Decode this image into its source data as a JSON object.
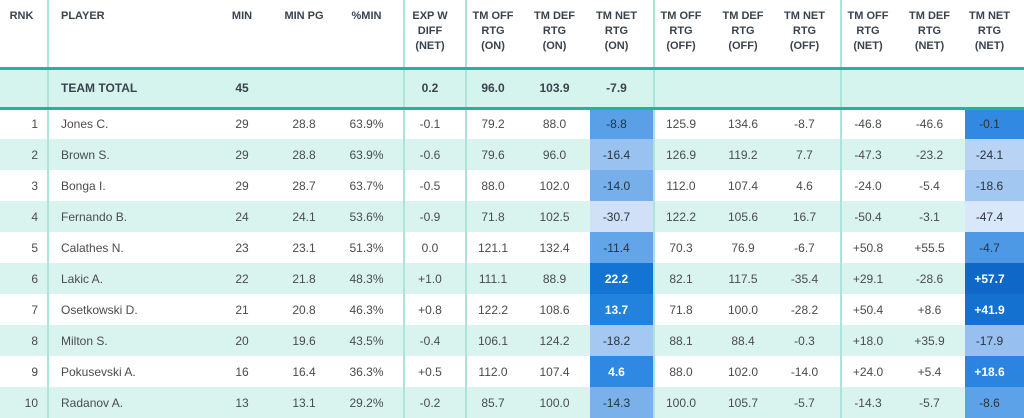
{
  "colors": {
    "accent_teal_border": "#25B2A0",
    "row_stripe_mint": "#D9F4EF",
    "team_total_bg": "#D6F4EE",
    "column_separator": "#ACE3DB",
    "header_text": "#3A434D",
    "body_text": "#4B4B4B",
    "heat_text_dark": "#2B333C",
    "heat_text_light": "#FFFFFF",
    "heat_blue_max": "#0F68C8",
    "heat_blue_min": "#D9E7FA"
  },
  "table": {
    "columns": [
      {
        "name": "rnk",
        "lines": [
          "RNK"
        ]
      },
      {
        "name": "player",
        "lines": [
          "PLAYER"
        ]
      },
      {
        "name": "min",
        "lines": [
          "MIN"
        ]
      },
      {
        "name": "min-pg",
        "lines": [
          "MIN PG"
        ]
      },
      {
        "name": "pct-min",
        "lines": [
          "%MIN"
        ]
      },
      {
        "name": "exp-w-diff-net",
        "lines": [
          "EXP W",
          "DIFF",
          "(NET)"
        ]
      },
      {
        "name": "tm-off-rtg-on",
        "lines": [
          "TM OFF",
          "RTG",
          "(ON)"
        ]
      },
      {
        "name": "tm-def-rtg-on",
        "lines": [
          "TM DEF",
          "RTG",
          "(ON)"
        ]
      },
      {
        "name": "tm-net-rtg-on",
        "lines": [
          "TM NET",
          "RTG",
          "(ON)"
        ]
      },
      {
        "name": "tm-off-rtg-off",
        "lines": [
          "TM OFF",
          "RTG",
          "(OFF)"
        ]
      },
      {
        "name": "tm-def-rtg-off",
        "lines": [
          "TM DEF",
          "RTG",
          "(OFF)"
        ]
      },
      {
        "name": "tm-net-rtg-off",
        "lines": [
          "TM NET",
          "RTG",
          "(OFF)"
        ]
      },
      {
        "name": "tm-off-rtg-net",
        "lines": [
          "TM OFF",
          "RTG",
          "(NET)"
        ]
      },
      {
        "name": "tm-def-rtg-net",
        "lines": [
          "TM DEF",
          "RTG",
          "(NET)"
        ]
      },
      {
        "name": "tm-net-rtg-net",
        "lines": [
          "TM NET",
          "RTG",
          "(NET)"
        ]
      }
    ],
    "team_total": {
      "cells": [
        "",
        "TEAM TOTAL",
        "45",
        "",
        "",
        "0.2",
        "96.0",
        "103.9",
        "-7.9",
        "",
        "",
        "",
        "",
        "",
        ""
      ]
    },
    "rows": [
      {
        "cells": [
          "1",
          "Jones C.",
          "29",
          "28.8",
          "63.9%",
          "-0.1",
          "79.2",
          "88.0",
          "-8.8",
          "125.9",
          "134.6",
          "-8.7",
          "-46.8",
          "-46.6",
          "-0.1"
        ],
        "heat": {
          "8": {
            "bg": "#59A0E7",
            "fg": "#2B333C"
          },
          "14": {
            "bg": "#3289E1",
            "fg": "#2B333C"
          }
        }
      },
      {
        "cells": [
          "2",
          "Brown S.",
          "29",
          "28.8",
          "63.9%",
          "-0.6",
          "79.6",
          "96.0",
          "-16.4",
          "126.9",
          "119.2",
          "7.7",
          "-47.3",
          "-23.2",
          "-24.1"
        ],
        "heat": {
          "8": {
            "bg": "#9AC2F0",
            "fg": "#2B333C"
          },
          "14": {
            "bg": "#B9D3F5",
            "fg": "#2B333C"
          }
        }
      },
      {
        "cells": [
          "3",
          "Bonga I.",
          "29",
          "28.7",
          "63.7%",
          "-0.5",
          "88.0",
          "102.0",
          "-14.0",
          "112.0",
          "107.4",
          "4.6",
          "-24.0",
          "-5.4",
          "-18.6"
        ],
        "heat": {
          "8": {
            "bg": "#77AFEA",
            "fg": "#2B333C"
          },
          "14": {
            "bg": "#A2C7F1",
            "fg": "#2B333C"
          }
        }
      },
      {
        "cells": [
          "4",
          "Fernando B.",
          "24",
          "24.1",
          "53.6%",
          "-0.9",
          "71.8",
          "102.5",
          "-30.7",
          "122.2",
          "105.6",
          "16.7",
          "-50.4",
          "-3.1",
          "-47.4"
        ],
        "heat": {
          "8": {
            "bg": "#CFE0F7",
            "fg": "#2B333C"
          },
          "14": {
            "bg": "#D9E7FA",
            "fg": "#2B333C"
          }
        }
      },
      {
        "cells": [
          "5",
          "Calathes N.",
          "23",
          "23.1",
          "51.3%",
          "0.0",
          "121.1",
          "132.4",
          "-11.4",
          "70.3",
          "76.9",
          "-6.7",
          "+50.8",
          "+55.5",
          "-4.7"
        ],
        "heat": {
          "8": {
            "bg": "#62A6E9",
            "fg": "#2B333C"
          },
          "14": {
            "bg": "#4D99E5",
            "fg": "#2B333C"
          }
        }
      },
      {
        "cells": [
          "6",
          "Lakic A.",
          "22",
          "21.8",
          "48.3%",
          "+1.0",
          "111.1",
          "88.9",
          "22.2",
          "82.1",
          "117.5",
          "-35.4",
          "+29.1",
          "-28.6",
          "+57.7"
        ],
        "heat": {
          "8": {
            "bg": "#1374D4",
            "fg": "#FFFFFF"
          },
          "14": {
            "bg": "#0F68C8",
            "fg": "#FFFFFF"
          }
        }
      },
      {
        "cells": [
          "7",
          "Osetkowski D.",
          "21",
          "20.8",
          "46.3%",
          "+0.8",
          "122.2",
          "108.6",
          "13.7",
          "71.8",
          "100.0",
          "-28.2",
          "+50.4",
          "+8.6",
          "+41.9"
        ],
        "heat": {
          "8": {
            "bg": "#2382DE",
            "fg": "#FFFFFF"
          },
          "14": {
            "bg": "#1471CF",
            "fg": "#FFFFFF"
          }
        }
      },
      {
        "cells": [
          "8",
          "Milton S.",
          "20",
          "19.6",
          "43.5%",
          "-0.4",
          "106.1",
          "124.2",
          "-18.2",
          "88.1",
          "88.4",
          "-0.3",
          "+18.0",
          "+35.9",
          "-17.9"
        ],
        "heat": {
          "8": {
            "bg": "#A5C8F2",
            "fg": "#2B333C"
          },
          "14": {
            "bg": "#97C0F0",
            "fg": "#2B333C"
          }
        }
      },
      {
        "cells": [
          "9",
          "Pokusevski A.",
          "16",
          "16.4",
          "36.3%",
          "+0.5",
          "112.0",
          "107.4",
          "4.6",
          "88.0",
          "102.0",
          "-14.0",
          "+24.0",
          "+5.4",
          "+18.6"
        ],
        "heat": {
          "8": {
            "bg": "#2F88E1",
            "fg": "#FFFFFF"
          },
          "14": {
            "bg": "#2B85E0",
            "fg": "#FFFFFF"
          }
        }
      },
      {
        "cells": [
          "10",
          "Radanov A.",
          "13",
          "13.1",
          "29.2%",
          "-0.2",
          "85.7",
          "100.0",
          "-14.3",
          "100.0",
          "105.7",
          "-5.7",
          "-14.3",
          "-5.7",
          "-8.6"
        ],
        "heat": {
          "8": {
            "bg": "#7AB1EB",
            "fg": "#2B333C"
          },
          "14": {
            "bg": "#5BA2E8",
            "fg": "#2B333C"
          }
        }
      }
    ]
  },
  "chart_data": {
    "type": "table",
    "title": "Player minutes and team on/off/net rating table",
    "columns": [
      "RNK",
      "PLAYER",
      "MIN",
      "MIN PG",
      "%MIN",
      "EXP W DIFF (NET)",
      "TM OFF RTG (ON)",
      "TM DEF RTG (ON)",
      "TM NET RTG (ON)",
      "TM OFF RTG (OFF)",
      "TM DEF RTG (OFF)",
      "TM NET RTG (OFF)",
      "TM OFF RTG (NET)",
      "TM DEF RTG (NET)",
      "TM NET RTG (NET)"
    ],
    "team_total_row": [
      null,
      "TEAM TOTAL",
      45,
      null,
      null,
      0.2,
      96.0,
      103.9,
      -7.9,
      null,
      null,
      null,
      null,
      null,
      null
    ],
    "rows": [
      [
        1,
        "Jones C.",
        29,
        28.8,
        "63.9%",
        -0.1,
        79.2,
        88.0,
        -8.8,
        125.9,
        134.6,
        -8.7,
        -46.8,
        -46.6,
        -0.1
      ],
      [
        2,
        "Brown S.",
        29,
        28.8,
        "63.9%",
        -0.6,
        79.6,
        96.0,
        -16.4,
        126.9,
        119.2,
        7.7,
        -47.3,
        -23.2,
        -24.1
      ],
      [
        3,
        "Bonga I.",
        29,
        28.7,
        "63.7%",
        -0.5,
        88.0,
        102.0,
        -14.0,
        112.0,
        107.4,
        4.6,
        -24.0,
        -5.4,
        -18.6
      ],
      [
        4,
        "Fernando B.",
        24,
        24.1,
        "53.6%",
        -0.9,
        71.8,
        102.5,
        -30.7,
        122.2,
        105.6,
        16.7,
        -50.4,
        -3.1,
        -47.4
      ],
      [
        5,
        "Calathes N.",
        23,
        23.1,
        "51.3%",
        0.0,
        121.1,
        132.4,
        -11.4,
        70.3,
        76.9,
        -6.7,
        50.8,
        55.5,
        -4.7
      ],
      [
        6,
        "Lakic A.",
        22,
        21.8,
        "48.3%",
        1.0,
        111.1,
        88.9,
        22.2,
        82.1,
        117.5,
        -35.4,
        29.1,
        -28.6,
        57.7
      ],
      [
        7,
        "Osetkowski D.",
        21,
        20.8,
        "46.3%",
        0.8,
        122.2,
        108.6,
        13.7,
        71.8,
        100.0,
        -28.2,
        50.4,
        8.6,
        41.9
      ],
      [
        8,
        "Milton S.",
        20,
        19.6,
        "43.5%",
        -0.4,
        106.1,
        124.2,
        -18.2,
        88.1,
        88.4,
        -0.3,
        18.0,
        35.9,
        -17.9
      ],
      [
        9,
        "Pokusevski A.",
        16,
        16.4,
        "36.3%",
        0.5,
        112.0,
        107.4,
        4.6,
        88.0,
        102.0,
        -14.0,
        24.0,
        5.4,
        18.6
      ],
      [
        10,
        "Radanov A.",
        13,
        13.1,
        "29.2%",
        -0.2,
        85.7,
        100.0,
        -14.3,
        100.0,
        105.7,
        -5.7,
        -14.3,
        -5.7,
        -8.6
      ]
    ],
    "heat_columns": [
      "TM NET RTG (ON)",
      "TM NET RTG (NET)"
    ],
    "heat_scale": "higher value = darker blue, white text on darkest cells",
    "legend_position": "none",
    "grid": "column group separators only"
  }
}
